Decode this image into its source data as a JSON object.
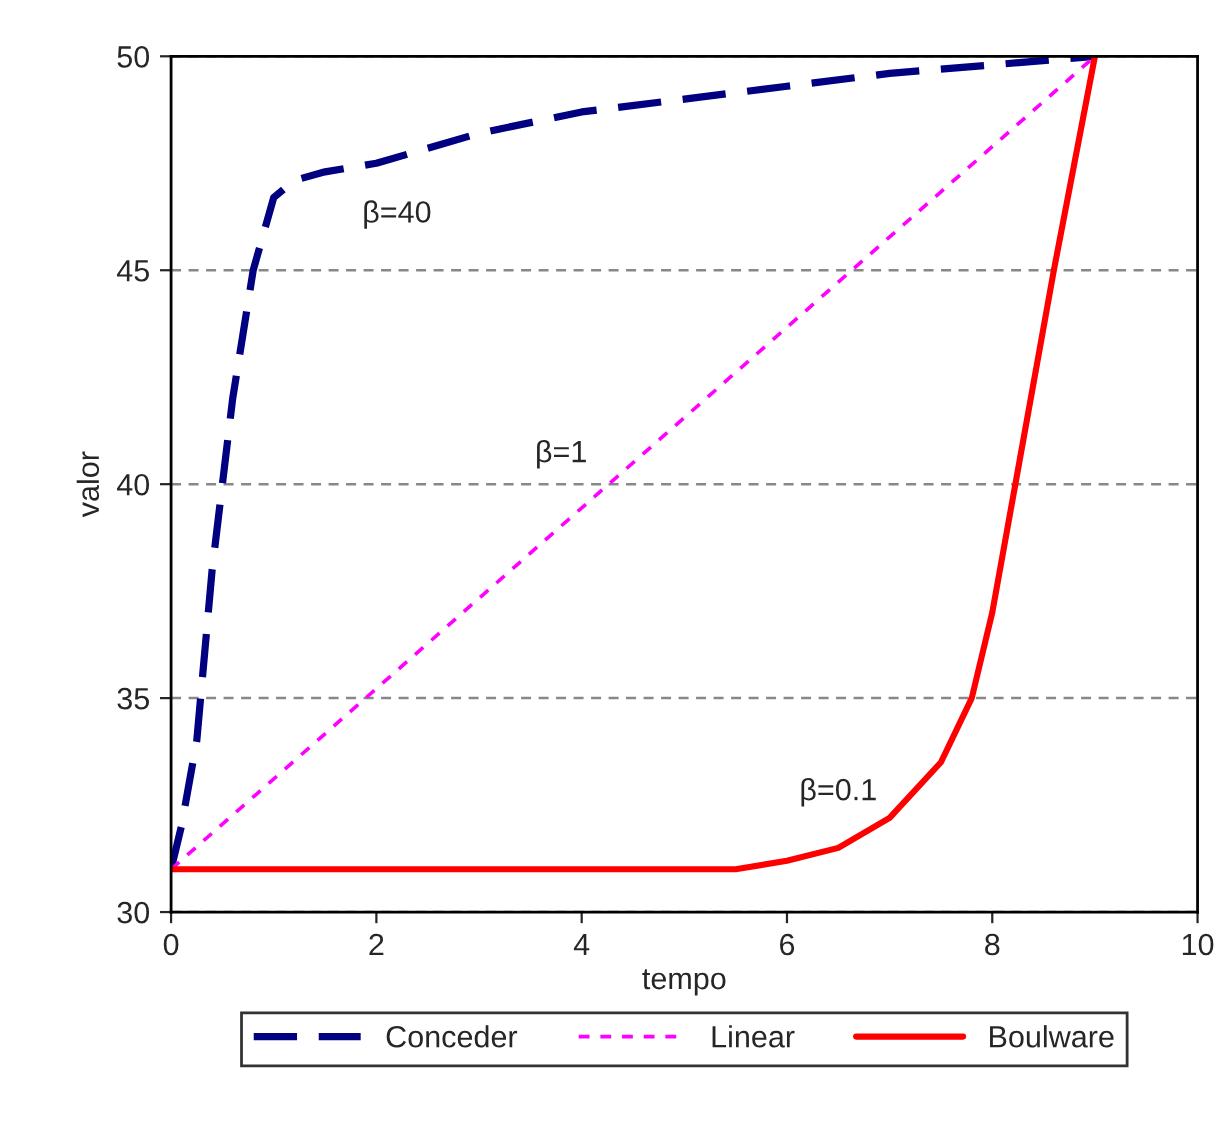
{
  "chart_data": {
    "type": "line",
    "xlabel": "tempo",
    "ylabel": "valor",
    "xlim": [
      0,
      10
    ],
    "xticks": [
      0,
      2,
      4,
      6,
      8,
      10
    ],
    "ylim": [
      30,
      50
    ],
    "yticks": [
      30,
      35,
      40,
      45,
      50
    ],
    "grid": "y",
    "legend": "bottom",
    "marker": "none",
    "series": [
      {
        "name": "Conceder",
        "color": "#000080",
        "line_style": "dashed",
        "x": [
          0,
          0.1,
          0.25,
          0.4,
          0.6,
          0.8,
          1.0,
          1.2,
          1.5,
          2,
          3,
          4,
          5,
          6,
          7,
          8,
          9
        ],
        "values": [
          31,
          32,
          34,
          38,
          42,
          45,
          46.7,
          47.1,
          47.3,
          47.5,
          48.2,
          48.7,
          49,
          49.3,
          49.6,
          49.8,
          50
        ]
      },
      {
        "name": "Linear",
        "color": "#ff00ff",
        "line_style": "dotted",
        "x": [
          0,
          9
        ],
        "values": [
          31,
          50
        ]
      },
      {
        "name": "Boulware",
        "color": "#ff0000",
        "line_style": "solid",
        "x": [
          0,
          5.5,
          6,
          6.5,
          7,
          7.5,
          7.8,
          8,
          8.3,
          8.6,
          9
        ],
        "values": [
          31,
          31,
          31.2,
          31.5,
          32.2,
          33.5,
          35,
          37,
          41,
          45,
          50
        ]
      }
    ],
    "annotations": [
      "β=40",
      "β=1",
      "β=0.1"
    ]
  }
}
